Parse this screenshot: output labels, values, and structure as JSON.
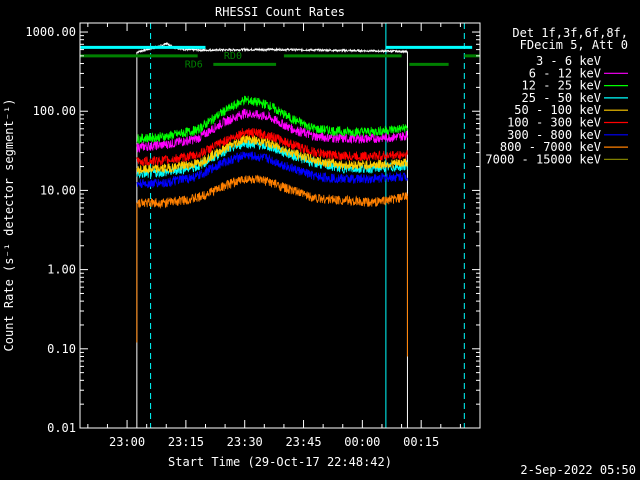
{
  "chart_data": {
    "type": "line",
    "title": "RHESSI Count Rates",
    "xlabel": "Start Time (29-Oct-17 22:48:42)",
    "ylabel": "Count Rate (s⁻¹ detector segment⁻¹)",
    "yscale": "log",
    "ylim": [
      0.01,
      1300
    ],
    "xlim_minutes": [
      -12,
      90
    ],
    "x_ticks": [
      {
        "label": "23:00",
        "m": 0
      },
      {
        "label": "23:15",
        "m": 15
      },
      {
        "label": "23:30",
        "m": 30
      },
      {
        "label": "23:45",
        "m": 45
      },
      {
        "label": "00:00",
        "m": 60
      },
      {
        "label": "00:15",
        "m": 75
      }
    ],
    "y_ticks": [
      {
        "label": "1000.00",
        "v": 1000
      },
      {
        "label": "100.00",
        "v": 100
      },
      {
        "label": "10.00",
        "v": 10
      },
      {
        "label": "1.00",
        "v": 1
      },
      {
        "label": "0.10",
        "v": 0.1
      },
      {
        "label": "0.01",
        "v": 0.01
      }
    ],
    "legend_header": [
      "Det 1f,3f,6f,8f,",
      "FDecim 5, Att 0"
    ],
    "series": [
      {
        "name": "3 - 6 keV",
        "color": "#000000",
        "spikes": [
          {
            "t": 2.5,
            "to": 0.0001
          },
          {
            "t": 71.5,
            "to": 0.0001
          }
        ],
        "points": [
          [
            2.5,
            560
          ],
          [
            5,
            600
          ],
          [
            8,
            650
          ],
          [
            10,
            720
          ],
          [
            12,
            640
          ],
          [
            15,
            600
          ],
          [
            20,
            590
          ],
          [
            30,
            600
          ],
          [
            40,
            600
          ],
          [
            50,
            590
          ],
          [
            60,
            580
          ],
          [
            70,
            570
          ],
          [
            71.5,
            560
          ]
        ]
      },
      {
        "name": "6 - 12 keV",
        "color": "#ff00ff",
        "points": [
          [
            2.5,
            35
          ],
          [
            10,
            38
          ],
          [
            18,
            45
          ],
          [
            24,
            70
          ],
          [
            30,
            95
          ],
          [
            36,
            85
          ],
          [
            42,
            60
          ],
          [
            48,
            48
          ],
          [
            55,
            45
          ],
          [
            62,
            45
          ],
          [
            70,
            48
          ],
          [
            71.5,
            50
          ]
        ]
      },
      {
        "name": "12 - 25 keV",
        "color": "#00ff00",
        "points": [
          [
            2.5,
            45
          ],
          [
            10,
            48
          ],
          [
            18,
            58
          ],
          [
            24,
            95
          ],
          [
            30,
            140
          ],
          [
            36,
            120
          ],
          [
            42,
            80
          ],
          [
            48,
            60
          ],
          [
            55,
            55
          ],
          [
            62,
            55
          ],
          [
            70,
            60
          ],
          [
            71.5,
            62
          ]
        ]
      },
      {
        "name": "25 - 50 keV",
        "color": "#00ffff",
        "points": [
          [
            2.5,
            16
          ],
          [
            10,
            17
          ],
          [
            18,
            20
          ],
          [
            24,
            30
          ],
          [
            30,
            40
          ],
          [
            36,
            36
          ],
          [
            42,
            28
          ],
          [
            48,
            22
          ],
          [
            55,
            19
          ],
          [
            62,
            19
          ],
          [
            70,
            20
          ],
          [
            71.5,
            21
          ]
        ]
      },
      {
        "name": "50 - 100 keV",
        "color": "#ffcc00",
        "points": [
          [
            2.5,
            18
          ],
          [
            10,
            19
          ],
          [
            18,
            22
          ],
          [
            24,
            32
          ],
          [
            30,
            45
          ],
          [
            36,
            40
          ],
          [
            42,
            30
          ],
          [
            48,
            24
          ],
          [
            55,
            21
          ],
          [
            62,
            21
          ],
          [
            70,
            22
          ],
          [
            71.5,
            23
          ]
        ]
      },
      {
        "name": "100 - 300 keV",
        "color": "#ff0000",
        "points": [
          [
            2.5,
            23
          ],
          [
            10,
            24
          ],
          [
            18,
            28
          ],
          [
            24,
            40
          ],
          [
            30,
            55
          ],
          [
            36,
            50
          ],
          [
            42,
            38
          ],
          [
            48,
            30
          ],
          [
            55,
            27
          ],
          [
            62,
            27
          ],
          [
            70,
            28
          ],
          [
            71.5,
            29
          ]
        ]
      },
      {
        "name": "300 - 800 keV",
        "color": "#0000ff",
        "points": [
          [
            2.5,
            12
          ],
          [
            10,
            12.5
          ],
          [
            18,
            15
          ],
          [
            24,
            22
          ],
          [
            30,
            28
          ],
          [
            36,
            25
          ],
          [
            42,
            19
          ],
          [
            48,
            15
          ],
          [
            55,
            14
          ],
          [
            62,
            14
          ],
          [
            70,
            15
          ],
          [
            71.5,
            15
          ]
        ]
      },
      {
        "name": "800 - 7000 keV",
        "color": "#ff8000",
        "spikes": [
          {
            "t": 2.5,
            "to": 0.12
          },
          {
            "t": 71.5,
            "to": 0.08
          }
        ],
        "points": [
          [
            2.5,
            7
          ],
          [
            10,
            7
          ],
          [
            18,
            8
          ],
          [
            24,
            11
          ],
          [
            30,
            14
          ],
          [
            36,
            13
          ],
          [
            42,
            10
          ],
          [
            48,
            8
          ],
          [
            55,
            7.5
          ],
          [
            62,
            7
          ],
          [
            70,
            8
          ],
          [
            71.5,
            8.5
          ]
        ]
      },
      {
        "name": "7000 - 15000 keV",
        "color": "#808000",
        "points": []
      }
    ],
    "attenuator_bars": [
      {
        "color": "#00ffff",
        "from": -12,
        "to": 20,
        "v": 640
      },
      {
        "color": "#00ffff",
        "from": 66,
        "to": 88,
        "v": 640
      },
      {
        "color": "#008000",
        "from": -12,
        "to": 18,
        "v": 500
      },
      {
        "color": "#008000",
        "from": 40,
        "to": 70,
        "v": 500
      },
      {
        "color": "#008000",
        "from": 86,
        "to": 90,
        "v": 500
      },
      {
        "color": "#008000",
        "from": 22,
        "to": 38,
        "v": 390
      },
      {
        "color": "#008000",
        "from": 72,
        "to": 82,
        "v": 390
      }
    ],
    "vlines": [
      {
        "m": -12,
        "color": "#00ffff",
        "style": "solid"
      },
      {
        "m": 6,
        "color": "#00ffff",
        "style": "dash"
      },
      {
        "m": 66,
        "color": "#00ffff",
        "style": "solid"
      },
      {
        "m": 86,
        "color": "#00ffff",
        "style": "dash"
      }
    ],
    "annotations": [
      {
        "text": "RD6",
        "color": "#008000",
        "m": 17,
        "v": 390
      },
      {
        "text": "RD0",
        "color": "#008000",
        "m": 27,
        "v": 500
      }
    ],
    "timestamp": "2-Sep-2022 05:50",
    "grid": false,
    "legend_position": "right"
  }
}
